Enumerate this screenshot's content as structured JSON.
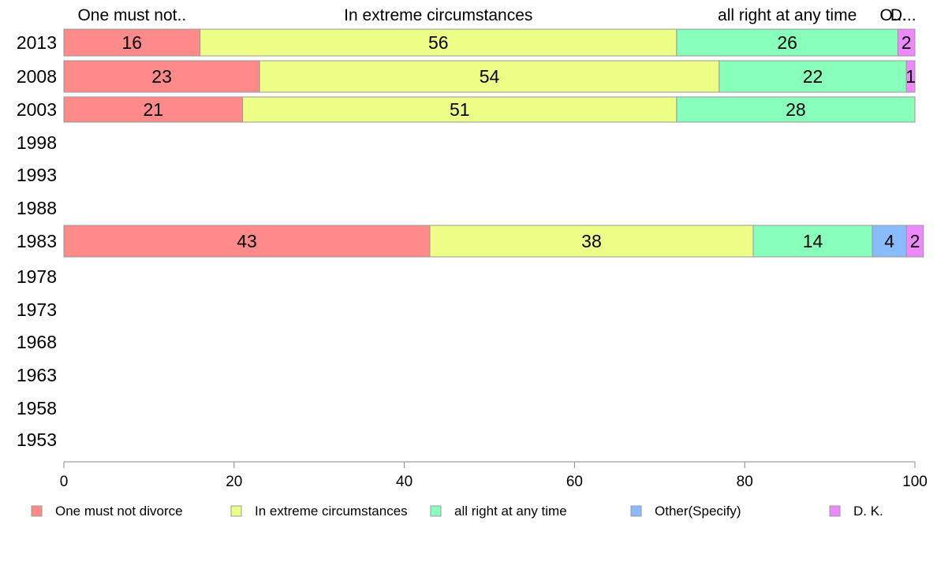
{
  "chart_data": {
    "type": "bar",
    "orientation": "horizontal",
    "stacked": true,
    "categories": [
      "2013",
      "2008",
      "2003",
      "1998",
      "1993",
      "1988",
      "1983",
      "1978",
      "1973",
      "1968",
      "1963",
      "1958",
      "1953"
    ],
    "series": [
      {
        "name": "One must not divorce",
        "short_label": "One must not..",
        "color": "#FF8A8A",
        "values": [
          16,
          23,
          21,
          null,
          null,
          null,
          43,
          null,
          null,
          null,
          null,
          null,
          null
        ]
      },
      {
        "name": "In extreme circumstances",
        "short_label": "In extreme circumstances",
        "color": "#EEFF88",
        "values": [
          56,
          54,
          51,
          null,
          null,
          null,
          38,
          null,
          null,
          null,
          null,
          null,
          null
        ]
      },
      {
        "name": "all right at any time",
        "short_label": "all right at any time",
        "color": "#88FFBB",
        "values": [
          26,
          22,
          28,
          null,
          null,
          null,
          14,
          null,
          null,
          null,
          null,
          null,
          null
        ]
      },
      {
        "name": "Other(Specify)",
        "short_label": "O...",
        "color": "#88BBFF",
        "values": [
          0,
          0,
          0,
          null,
          null,
          null,
          4,
          null,
          null,
          null,
          null,
          null,
          null
        ]
      },
      {
        "name": "D. K.",
        "short_label": "D...",
        "color": "#EE88FF",
        "values": [
          2,
          1,
          0,
          null,
          null,
          null,
          2,
          null,
          null,
          null,
          null,
          null,
          null
        ]
      }
    ],
    "xlim": [
      0,
      100
    ],
    "xticks": [
      0,
      20,
      40,
      60,
      80,
      100
    ],
    "legend_position": "bottom",
    "grid": false
  }
}
